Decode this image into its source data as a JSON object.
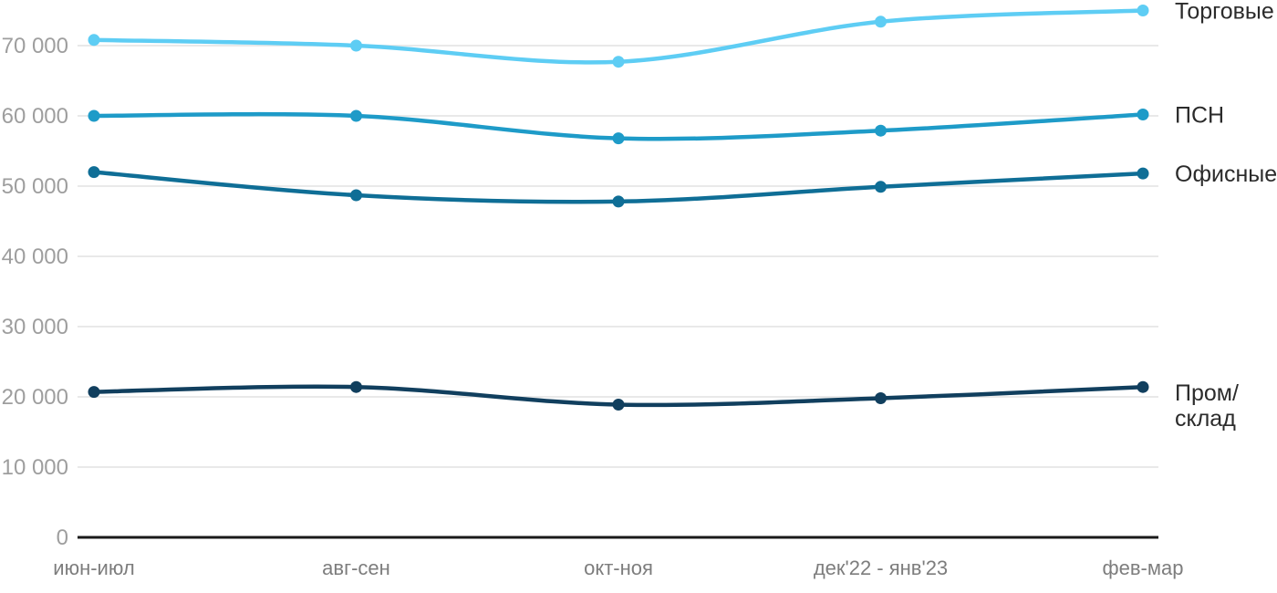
{
  "chart_data": {
    "type": "line",
    "title": "",
    "xlabel": "",
    "ylabel": "",
    "grid": true,
    "legend_position": "right-end-of-lines",
    "categories": [
      "июн-июл",
      "авг-сен",
      "окт-ноя",
      "дек'22 - янв'23",
      "фев-мар"
    ],
    "series": [
      {
        "name": "Торговые",
        "label_lines": [
          "Торговые"
        ],
        "color": "#5ecdf4",
        "values": [
          70800,
          70000,
          67700,
          73400,
          75000
        ]
      },
      {
        "name": "ПСН",
        "label_lines": [
          "ПСН"
        ],
        "color": "#1e9bc8",
        "values": [
          60000,
          60000,
          56800,
          57900,
          60200
        ]
      },
      {
        "name": "Офисные",
        "label_lines": [
          "Офисные"
        ],
        "color": "#0f6e96",
        "values": [
          52000,
          48700,
          47800,
          49900,
          51800
        ]
      },
      {
        "name": "Пром/склад",
        "label_lines": [
          "Пром/",
          "склад"
        ],
        "color": "#113f5e",
        "values": [
          20700,
          21400,
          18900,
          19800,
          21400
        ]
      }
    ],
    "yticks": [
      0,
      10000,
      20000,
      30000,
      40000,
      50000,
      60000,
      70000
    ],
    "ytick_labels": [
      "0",
      "10 000",
      "20 000",
      "30 000",
      "40 000",
      "50 000",
      "60 000",
      "70 000"
    ],
    "ylim": [
      0,
      75000
    ]
  },
  "colors": {
    "background": "#ffffff",
    "gridline": "#e9e9e9",
    "axis_line": "#1a1a1a",
    "ytick_text": "#9e9e9e",
    "xtick_text": "#7d7d7d",
    "series_label_text": "#2b2b2b"
  }
}
